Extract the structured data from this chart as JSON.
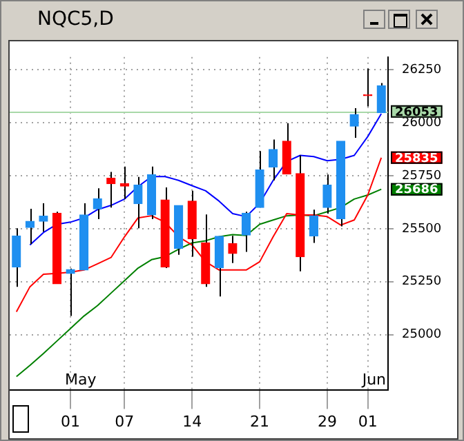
{
  "chart_data": {
    "type": "candlestick",
    "title": "NQC5,D",
    "categories": [
      null,
      null,
      null,
      null,
      "01",
      null,
      null,
      null,
      "07",
      null,
      null,
      null,
      null,
      "14",
      null,
      null,
      null,
      null,
      "21",
      null,
      null,
      null,
      null,
      "29",
      null,
      null,
      "01",
      null
    ],
    "ohlc": [
      [
        25320,
        25502,
        25226,
        25466
      ],
      [
        25506,
        25594,
        25427,
        25535
      ],
      [
        25535,
        25620,
        25486,
        25559
      ],
      [
        25573,
        25580,
        25240,
        25240
      ],
      [
        25289,
        25312,
        25088,
        25307
      ],
      [
        25305,
        25620,
        25305,
        25565
      ],
      [
        25594,
        25691,
        25545,
        25641
      ],
      [
        25738,
        25768,
        25600,
        25712
      ],
      [
        25712,
        25793,
        25640,
        25701
      ],
      [
        25618,
        25744,
        25502,
        25706
      ],
      [
        25565,
        25793,
        25545,
        25754
      ],
      [
        25636,
        25695,
        25314,
        25320
      ],
      [
        25407,
        25610,
        25377,
        25610
      ],
      [
        25630,
        25679,
        25368,
        25452
      ],
      [
        25433,
        25567,
        25226,
        25240
      ],
      [
        25316,
        25464,
        25180,
        25464
      ],
      [
        25429,
        25466,
        25338,
        25383
      ],
      [
        25470,
        25580,
        25391,
        25573
      ],
      [
        25600,
        25866,
        25600,
        25777
      ],
      [
        25791,
        25921,
        25728,
        25874
      ],
      [
        25913,
        25998,
        25758,
        25758
      ],
      [
        25760,
        25846,
        25299,
        25368
      ],
      [
        25466,
        25590,
        25433,
        25561
      ],
      [
        25600,
        25756,
        25571,
        25706
      ],
      [
        25547,
        25913,
        25511,
        25913
      ],
      [
        25984,
        26069,
        25929,
        26039
      ],
      [
        26132,
        26256,
        26077,
        26128
      ],
      [
        26047,
        26187,
        26047,
        26175
      ]
    ],
    "colors": [
      "#1f8ff0",
      "#1f8ff0",
      "#1f8ff0",
      "#ff0000",
      "#1f8ff0",
      "#1f8ff0",
      "#1f8ff0",
      "#ff0000",
      "#ff0000",
      "#1f8ff0",
      "#1f8ff0",
      "#ff0000",
      "#1f8ff0",
      "#ff0000",
      "#ff0000",
      "#1f8ff0",
      "#ff0000",
      "#1f8ff0",
      "#1f8ff0",
      "#1f8ff0",
      "#ff0000",
      "#ff0000",
      "#1f8ff0",
      "#1f8ff0",
      "#1f8ff0",
      "#1f8ff0",
      "#ff0000",
      "#1f8ff0"
    ],
    "series": [
      {
        "type": "line",
        "color": "#0000ff",
        "values": [
          null,
          25423,
          25482,
          25521,
          25531,
          25551,
          25590,
          25610,
          25640,
          25699,
          25746,
          25746,
          25728,
          25703,
          25679,
          25630,
          25571,
          25557,
          25620,
          25728,
          25817,
          25846,
          25840,
          25821,
          25827,
          25846,
          25935,
          26043
        ]
      },
      {
        "type": "line",
        "color": "#ff0000",
        "values": [
          25108,
          25226,
          25285,
          25289,
          25295,
          25305,
          25334,
          25364,
          25462,
          25551,
          25561,
          25531,
          25462,
          25423,
          25344,
          25305,
          25305,
          25305,
          25344,
          25462,
          25571,
          25565,
          25565,
          25557,
          25517,
          25541,
          25659,
          25835
        ],
        "value_labels": [
          null,
          null,
          null,
          null,
          null,
          null,
          null,
          null,
          null,
          null,
          null,
          null,
          null,
          null,
          null,
          null,
          null,
          null,
          null,
          null,
          null,
          null,
          null,
          null,
          null,
          null,
          null,
          "25835"
        ]
      },
      {
        "type": "line",
        "color": "#008000",
        "values": [
          24802,
          24855,
          24911,
          24970,
          25029,
          25088,
          25137,
          25196,
          25255,
          25314,
          25354,
          25368,
          25403,
          25433,
          25443,
          25462,
          25472,
          25468,
          25521,
          25541,
          25561,
          25565,
          25561,
          25580,
          25600,
          25640,
          25659,
          25686
        ],
        "value_labels": [
          null,
          null,
          null,
          null,
          null,
          null,
          null,
          null,
          null,
          null,
          null,
          null,
          null,
          null,
          null,
          null,
          null,
          null,
          null,
          null,
          null,
          null,
          null,
          null,
          null,
          null,
          null,
          "25686"
        ]
      }
    ],
    "ylim": [
      24740,
      26310
    ],
    "yticks": [
      25000,
      25250,
      25500,
      25750,
      26000,
      26250
    ],
    "ref_lines": [
      {
        "axis": "y",
        "value": 26053,
        "label": "26053",
        "color": "#a8d8a8"
      }
    ],
    "annotations": [
      "May",
      "Jun"
    ],
    "grid": true,
    "legend": false,
    "marker": "none",
    "line_style": "solid"
  }
}
